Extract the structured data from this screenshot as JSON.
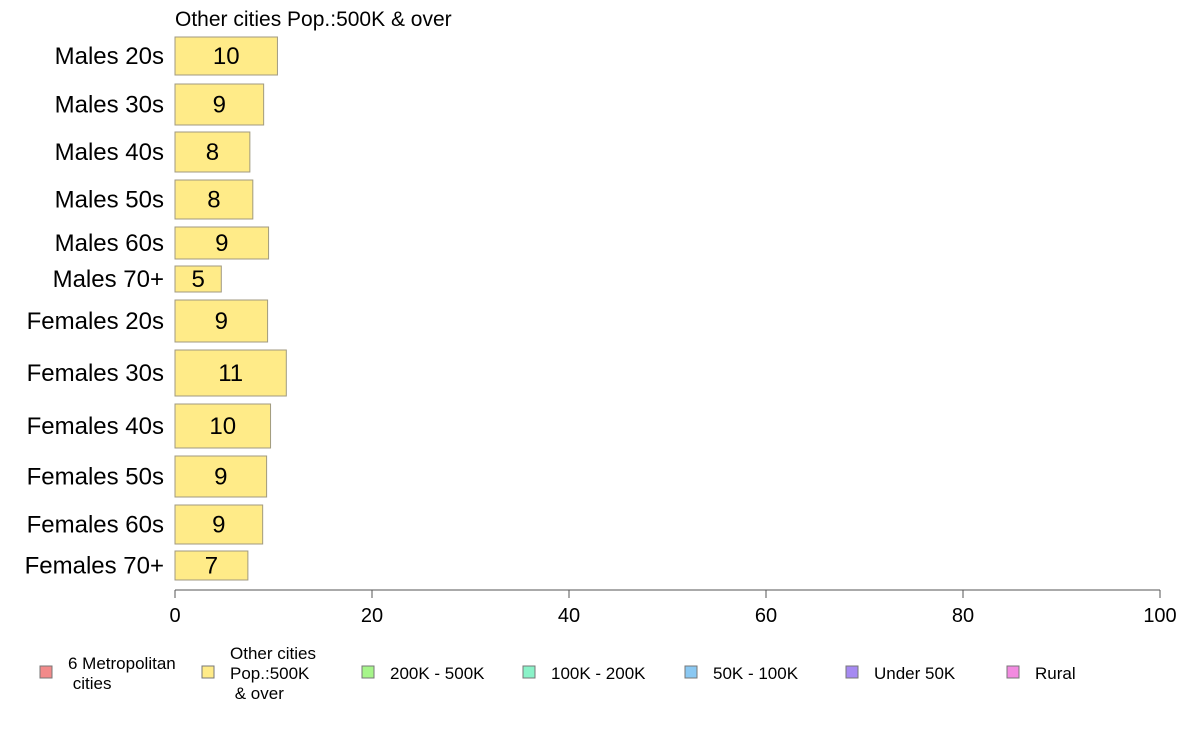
{
  "chart_data": {
    "type": "bar",
    "orientation": "horizontal",
    "title": "Other cities Pop.:500K & over",
    "categories": [
      "Males 20s",
      "Males 30s",
      "Males 40s",
      "Males 50s",
      "Males 60s",
      "Males 70+",
      "Females 20s",
      "Females 30s",
      "Females 40s",
      "Females 50s",
      "Females 60s",
      "Females 70+"
    ],
    "values": [
      10.4,
      9.0,
      7.6,
      7.9,
      9.5,
      4.7,
      9.4,
      11.3,
      9.7,
      9.3,
      8.9,
      7.4
    ],
    "value_labels": [
      "10",
      "9",
      "8",
      "8",
      "9",
      "5",
      "9",
      "11",
      "10",
      "9",
      "9",
      "7"
    ],
    "bar_color": "#ffeb88",
    "bar_stroke": "#a09a80",
    "xlim": [
      0,
      100
    ],
    "xticks": [
      0,
      20,
      40,
      60,
      80,
      100
    ],
    "grid": false,
    "legend_position": "bottom",
    "legend": [
      {
        "label": [
          "6 Metropolitan",
          " cities"
        ],
        "color": "#f28a8a"
      },
      {
        "label": [
          "Other cities",
          "Pop.:500K",
          " & over"
        ],
        "color": "#ffeb88"
      },
      {
        "label": [
          "200K - 500K"
        ],
        "color": "#a6f58a"
      },
      {
        "label": [
          "100K - 200K"
        ],
        "color": "#8af2c8"
      },
      {
        "label": [
          "50K - 100K"
        ],
        "color": "#8ac8f2"
      },
      {
        "label": [
          "Under 50K"
        ],
        "color": "#a68af2"
      },
      {
        "label": [
          "Rural"
        ],
        "color": "#f28ae0"
      }
    ]
  }
}
